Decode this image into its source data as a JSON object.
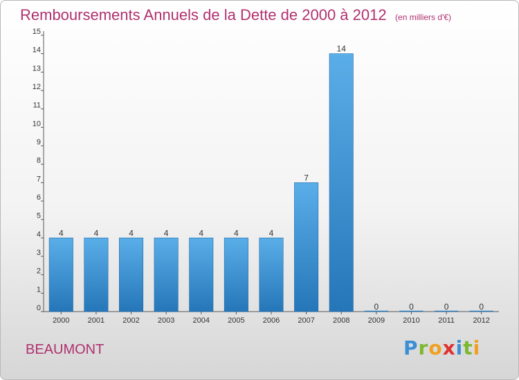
{
  "header": {
    "title": "Remboursements Annuels de la Dette de 2000 à 2012",
    "unit": "(en milliers d'€)"
  },
  "commune": "BEAUMONT",
  "logo": {
    "letters": [
      {
        "char": "P",
        "color": "#3a8fd6"
      },
      {
        "char": "r",
        "color": "#7cb82f"
      },
      {
        "char": "o",
        "color": "#f0a020"
      },
      {
        "char": "x",
        "color": "#e03030"
      },
      {
        "char": "i",
        "color": "#3a8fd6"
      },
      {
        "char": "t",
        "color": "#7cb82f"
      },
      {
        "char": "i",
        "color": "#f0a020"
      }
    ]
  },
  "chart_data": {
    "type": "bar",
    "title": "Remboursements Annuels de la Dette de 2000 à 2012",
    "subtitle": "(en milliers d'€)",
    "categories": [
      "2000",
      "2001",
      "2002",
      "2003",
      "2004",
      "2005",
      "2006",
      "2007",
      "2008",
      "2009",
      "2010",
      "2011",
      "2012"
    ],
    "values": [
      4,
      4,
      4,
      4,
      4,
      4,
      4,
      7,
      14,
      0,
      0,
      0,
      0
    ],
    "data_labels": [
      "4",
      "4",
      "4",
      "4",
      "4",
      "4",
      "4",
      "7",
      "14",
      "0",
      "0",
      "0",
      "0"
    ],
    "ylim": [
      0,
      15
    ],
    "yticks": [
      0,
      1,
      2,
      3,
      4,
      5,
      6,
      7,
      8,
      9,
      10,
      11,
      12,
      13,
      14,
      15
    ],
    "grid": false,
    "bar_color_top": "#5aaee8",
    "bar_color_bottom": "#2576b8",
    "text_color": "#333333",
    "title_color": "#b0306f"
  }
}
